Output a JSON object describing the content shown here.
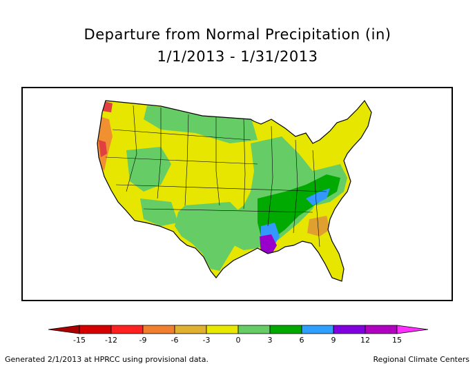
{
  "title": "Departure from Normal Precipitation (in)",
  "subtitle": "1/1/2013 - 1/31/2013",
  "legend": {
    "ticks": [
      "-15",
      "-12",
      "-9",
      "-6",
      "-3",
      "0",
      "3",
      "6",
      "9",
      "12",
      "15"
    ],
    "colors": [
      "#aa0000",
      "#d50000",
      "#ff2020",
      "#f08030",
      "#e0b030",
      "#e8e800",
      "#66cc66",
      "#00a800",
      "#30a0ff",
      "#8000e0",
      "#b000c0",
      "#ff30ff"
    ]
  },
  "palette": {
    "yellow": "#e6e600",
    "light_green": "#66cc66",
    "green": "#00aa00",
    "blue": "#3399ff",
    "purple": "#9900cc",
    "orange": "#f09030",
    "gold": "#e0b030",
    "red": "#e04040"
  },
  "footer": {
    "left": "Generated 2/1/2013 at HPRCC using provisional data.",
    "right": "Regional Climate Centers"
  }
}
